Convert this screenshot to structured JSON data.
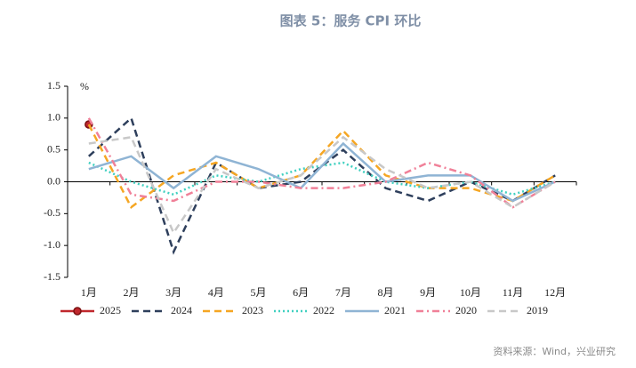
{
  "chart_data": {
    "type": "line",
    "title": "图表 5：服务 CPI 环比",
    "y_unit": "%",
    "source": "资料来源：Wind，兴业研究",
    "categories": [
      "1月",
      "2月",
      "3月",
      "4月",
      "5月",
      "6月",
      "7月",
      "8月",
      "9月",
      "10月",
      "11月",
      "12月"
    ],
    "ylim": [
      -1.5,
      1.5
    ],
    "yticks": [
      -1.5,
      {
        "value": -1,
        "label": "-1.0"
      },
      -0.5,
      {
        "value": 0,
        "label": "0.0"
      },
      0.5,
      {
        "value": 1,
        "label": "1.0"
      },
      1.5
    ],
    "series": [
      {
        "name": "2025",
        "color": "#c0282d",
        "dash": "solid",
        "marker": "circle",
        "values": [
          0.9,
          null,
          null,
          null,
          null,
          null,
          null,
          null,
          null,
          null,
          null,
          null
        ]
      },
      {
        "name": "2024",
        "color": "#2e3f5c",
        "dash": "dashed",
        "values": [
          0.4,
          1.0,
          -1.1,
          0.3,
          -0.1,
          0.0,
          0.5,
          -0.1,
          -0.3,
          0.0,
          -0.3,
          0.1
        ]
      },
      {
        "name": "2023",
        "color": "#f5a623",
        "dash": "dashed",
        "values": [
          0.9,
          -0.4,
          0.1,
          0.3,
          -0.1,
          0.1,
          0.8,
          0.1,
          -0.1,
          -0.1,
          -0.3,
          0.1
        ]
      },
      {
        "name": "2022",
        "color": "#40d0c0",
        "dash": "dotted",
        "values": [
          0.3,
          0.0,
          -0.2,
          0.1,
          0.0,
          0.2,
          0.3,
          0.0,
          -0.1,
          0.0,
          -0.2,
          0.0
        ]
      },
      {
        "name": "2021",
        "color": "#8fb4d4",
        "dash": "solid",
        "values": [
          0.2,
          0.4,
          -0.1,
          0.4,
          0.2,
          -0.1,
          0.6,
          0.0,
          0.1,
          0.1,
          -0.3,
          0.0
        ]
      },
      {
        "name": "2020",
        "color": "#f08098",
        "dash": "dashdot",
        "values": [
          1.0,
          -0.2,
          -0.3,
          0.0,
          0.0,
          -0.1,
          -0.1,
          0.0,
          0.3,
          0.1,
          -0.4,
          0.0
        ]
      },
      {
        "name": "2019",
        "color": "#c8c8c8",
        "dash": "dashed",
        "values": [
          0.6,
          0.7,
          -0.8,
          0.2,
          -0.1,
          0.1,
          0.7,
          0.2,
          -0.1,
          0.0,
          -0.4,
          0.0
        ]
      }
    ]
  }
}
